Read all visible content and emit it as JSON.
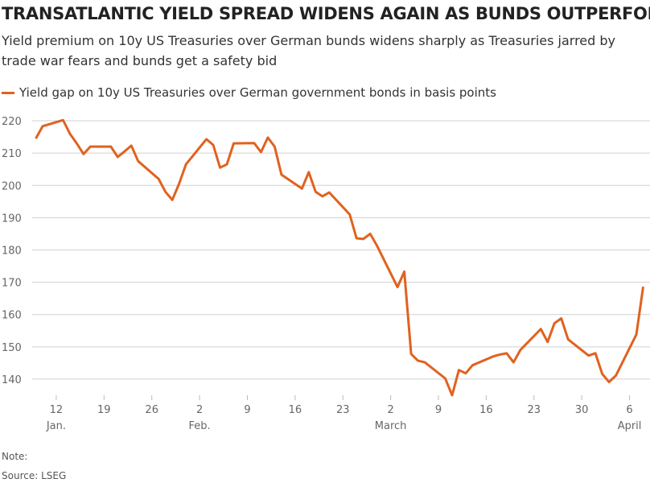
{
  "chart_data": {
    "type": "line",
    "title": "TRANSATLANTIC YIELD SPREAD WIDENS AGAIN AS BUNDS OUTPERFORM",
    "subtitle": "Yield premium on 10y US Treasuries over German bunds widens sharply as Treasuries jarred by trade war fears and bunds get a safety bid",
    "note": "Note:",
    "source": "Source: LSEG",
    "x": [
      "01-09",
      "01-10",
      "01-13",
      "01-14",
      "01-15",
      "01-16",
      "01-17",
      "01-20",
      "01-21",
      "01-22",
      "01-23",
      "01-24",
      "01-27",
      "01-28",
      "01-29",
      "01-30",
      "01-31",
      "02-03",
      "02-04",
      "02-05",
      "02-06",
      "02-07",
      "02-10",
      "02-11",
      "02-12",
      "02-13",
      "02-14",
      "02-17",
      "02-18",
      "02-19",
      "02-20",
      "02-21",
      "02-24",
      "02-25",
      "02-26",
      "02-27",
      "02-28",
      "03-03",
      "03-04",
      "03-05",
      "03-06",
      "03-07",
      "03-10",
      "03-11",
      "03-12",
      "03-13",
      "03-14",
      "03-17",
      "03-18",
      "03-19",
      "03-20",
      "03-21",
      "03-24",
      "03-25",
      "03-26",
      "03-27",
      "03-28",
      "03-31",
      "04-01",
      "04-02",
      "04-03",
      "04-04",
      "04-07",
      "04-08"
    ],
    "series": [
      {
        "name": "Yield gap on 10y US Treasuries over German government bonds in basis points",
        "color": "#e0621f",
        "values": [
          214.5,
          218.3,
          220.2,
          216,
          213,
          209.7,
          212,
          212,
          208.8,
          210.5,
          212.3,
          207.5,
          202,
          198,
          195.5,
          200.5,
          206.5,
          214.3,
          212.5,
          205.5,
          206.5,
          213,
          213.1,
          210.3,
          214.8,
          212,
          203.3,
          199,
          204.1,
          198,
          196.6,
          197.8,
          191,
          183.6,
          183.4,
          185,
          181.3,
          168.5,
          173.3,
          147.8,
          145.7,
          145.2,
          140.2,
          135,
          142.8,
          141.8,
          144.3,
          147,
          147.6,
          148,
          145.2,
          149,
          155.5,
          151.5,
          157.3,
          158.8,
          152.3,
          147.3,
          148,
          141.6,
          139.1,
          141.1,
          153.8,
          168.6
        ]
      }
    ],
    "xlim": [
      "01-08",
      "04-09"
    ],
    "xticks": [
      {
        "value": "01-12",
        "label": "12"
      },
      {
        "value": "01-19",
        "label": "19"
      },
      {
        "value": "01-26",
        "label": "26"
      },
      {
        "value": "02-02",
        "label": "2"
      },
      {
        "value": "02-09",
        "label": "9"
      },
      {
        "value": "02-16",
        "label": "16"
      },
      {
        "value": "02-23",
        "label": "23"
      },
      {
        "value": "03-02",
        "label": "2"
      },
      {
        "value": "03-09",
        "label": "9"
      },
      {
        "value": "03-16",
        "label": "16"
      },
      {
        "value": "03-23",
        "label": "23"
      },
      {
        "value": "03-30",
        "label": "30"
      },
      {
        "value": "04-06",
        "label": "6"
      }
    ],
    "x_month_labels": [
      {
        "value": "01-12",
        "label": "Jan."
      },
      {
        "value": "02-02",
        "label": "Feb."
      },
      {
        "value": "03-02",
        "label": "March"
      },
      {
        "value": "04-06",
        "label": "April"
      }
    ],
    "ylim": [
      134,
      224
    ],
    "yticks": [
      140,
      150,
      160,
      170,
      180,
      190,
      200,
      210,
      220
    ],
    "grid": true
  }
}
